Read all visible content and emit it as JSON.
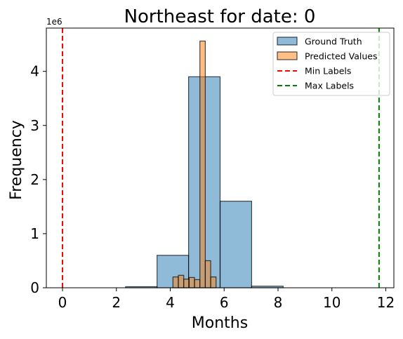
{
  "chart_data": {
    "type": "bar",
    "title": "Northeast for date: 0",
    "xlabel": "Months",
    "ylabel": "Frequency",
    "y_offset_label": "1e6",
    "xlim": [
      -0.6,
      12.3
    ],
    "ylim": [
      0,
      4.8
    ],
    "xticks": [
      0,
      2,
      4,
      6,
      8,
      10,
      12
    ],
    "xtick_labels": [
      "0",
      "2",
      "4",
      "6",
      "8",
      "10",
      "12"
    ],
    "yticks": [
      0,
      1,
      2,
      3,
      4
    ],
    "ytick_labels": [
      "0",
      "1",
      "2",
      "3",
      "4"
    ],
    "legend_position": "top-right",
    "series": [
      {
        "name": "Ground Truth",
        "color": "#1f77b4",
        "edge_color": "#000000",
        "bins": [
          {
            "x0": 0.0,
            "x1": 1.17,
            "value": 0.0
          },
          {
            "x0": 1.17,
            "x1": 2.34,
            "value": 0.0
          },
          {
            "x0": 2.34,
            "x1": 3.51,
            "value": 0.02
          },
          {
            "x0": 3.51,
            "x1": 4.68,
            "value": 0.6
          },
          {
            "x0": 4.68,
            "x1": 5.85,
            "value": 3.9
          },
          {
            "x0": 5.85,
            "x1": 7.02,
            "value": 1.6
          },
          {
            "x0": 7.02,
            "x1": 8.19,
            "value": 0.03
          },
          {
            "x0": 8.19,
            "x1": 9.36,
            "value": 0.0
          },
          {
            "x0": 9.36,
            "x1": 10.53,
            "value": 0.0
          },
          {
            "x0": 10.53,
            "x1": 11.7,
            "value": 0.0
          }
        ]
      },
      {
        "name": "Predicted Values",
        "color": "#ff7f0e",
        "edge_color": "#000000",
        "bins": [
          {
            "x0": 4.1,
            "x1": 4.3,
            "value": 0.2
          },
          {
            "x0": 4.3,
            "x1": 4.5,
            "value": 0.23
          },
          {
            "x0": 4.5,
            "x1": 4.7,
            "value": 0.16
          },
          {
            "x0": 4.7,
            "x1": 4.9,
            "value": 0.19
          },
          {
            "x0": 4.9,
            "x1": 5.1,
            "value": 0.15
          },
          {
            "x0": 5.1,
            "x1": 5.3,
            "value": 4.56
          },
          {
            "x0": 5.3,
            "x1": 5.5,
            "value": 0.5
          },
          {
            "x0": 5.5,
            "x1": 5.7,
            "value": 0.2
          }
        ]
      }
    ],
    "reference_lines": [
      {
        "name": "Min Labels",
        "x": 0.0,
        "color": "#ff0000",
        "style": "dashed"
      },
      {
        "name": "Max Labels",
        "x": 11.75,
        "color": "#008000",
        "style": "dashed"
      }
    ]
  }
}
